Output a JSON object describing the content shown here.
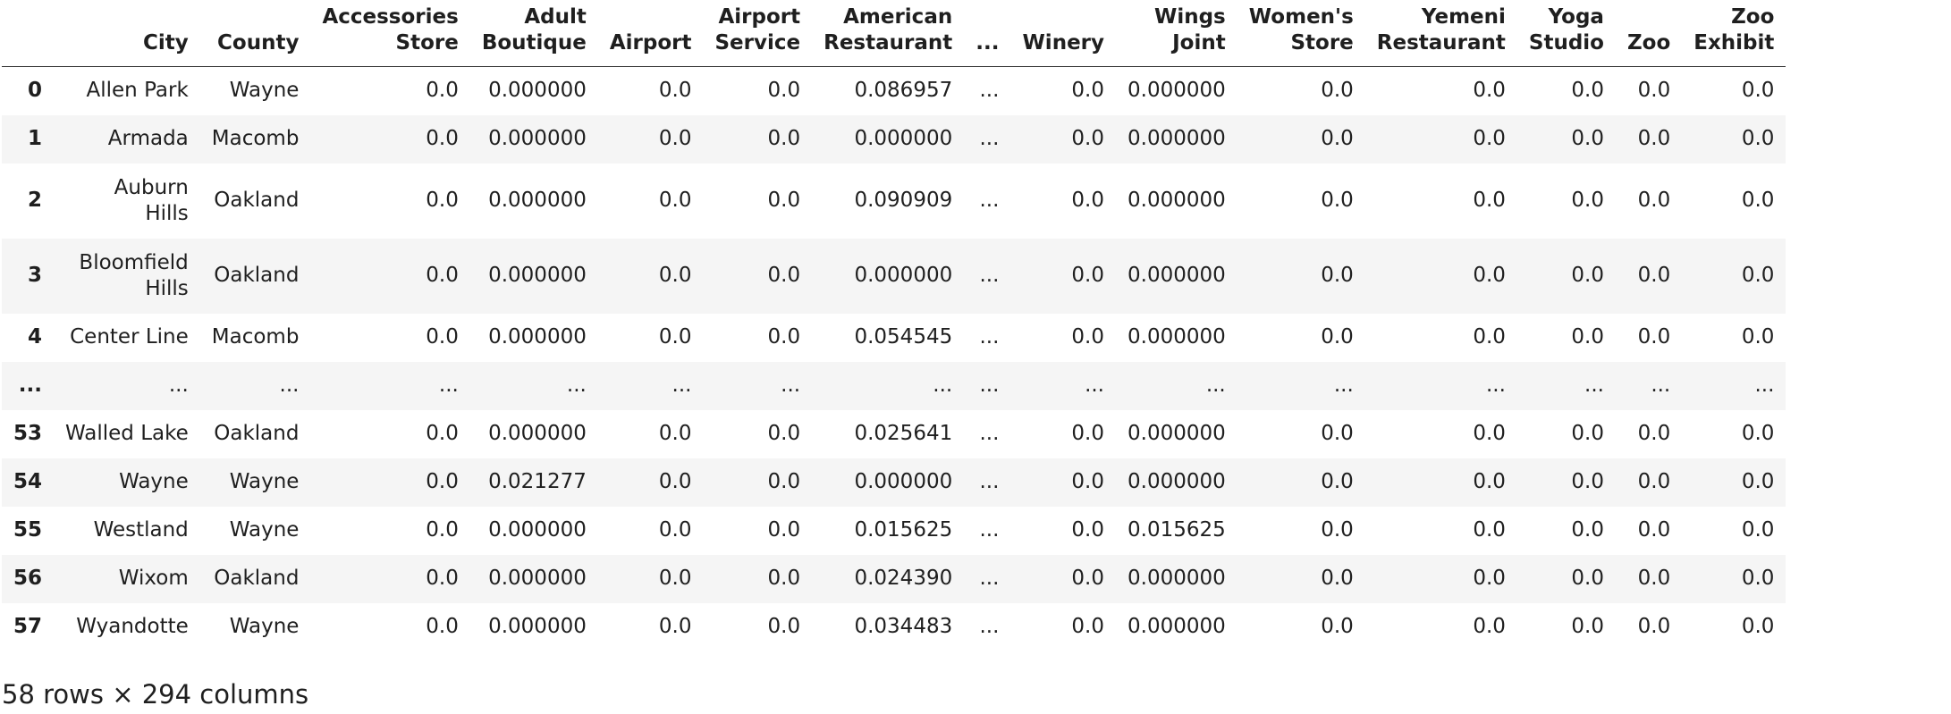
{
  "dataframe": {
    "columns": [
      "",
      "City",
      "County",
      "Accessories Store",
      "Adult Boutique",
      "Airport",
      "Airport Service",
      "American Restaurant",
      "...",
      "Winery",
      "Wings Joint",
      "Women's Store",
      "Yemeni Restaurant",
      "Yoga Studio",
      "Zoo",
      "Zoo Exhibit"
    ],
    "rows": [
      [
        "0",
        "Allen Park",
        "Wayne",
        "0.0",
        "0.000000",
        "0.0",
        "0.0",
        "0.086957",
        "...",
        "0.0",
        "0.000000",
        "0.0",
        "0.0",
        "0.0",
        "0.0",
        "0.0"
      ],
      [
        "1",
        "Armada",
        "Macomb",
        "0.0",
        "0.000000",
        "0.0",
        "0.0",
        "0.000000",
        "...",
        "0.0",
        "0.000000",
        "0.0",
        "0.0",
        "0.0",
        "0.0",
        "0.0"
      ],
      [
        "2",
        "Auburn Hills",
        "Oakland",
        "0.0",
        "0.000000",
        "0.0",
        "0.0",
        "0.090909",
        "...",
        "0.0",
        "0.000000",
        "0.0",
        "0.0",
        "0.0",
        "0.0",
        "0.0"
      ],
      [
        "3",
        "Bloomfield Hills",
        "Oakland",
        "0.0",
        "0.000000",
        "0.0",
        "0.0",
        "0.000000",
        "...",
        "0.0",
        "0.000000",
        "0.0",
        "0.0",
        "0.0",
        "0.0",
        "0.0"
      ],
      [
        "4",
        "Center Line",
        "Macomb",
        "0.0",
        "0.000000",
        "0.0",
        "0.0",
        "0.054545",
        "...",
        "0.0",
        "0.000000",
        "0.0",
        "0.0",
        "0.0",
        "0.0",
        "0.0"
      ],
      [
        "...",
        "...",
        "...",
        "...",
        "...",
        "...",
        "...",
        "...",
        "...",
        "...",
        "...",
        "...",
        "...",
        "...",
        "...",
        "..."
      ],
      [
        "53",
        "Walled Lake",
        "Oakland",
        "0.0",
        "0.000000",
        "0.0",
        "0.0",
        "0.025641",
        "...",
        "0.0",
        "0.000000",
        "0.0",
        "0.0",
        "0.0",
        "0.0",
        "0.0"
      ],
      [
        "54",
        "Wayne",
        "Wayne",
        "0.0",
        "0.021277",
        "0.0",
        "0.0",
        "0.000000",
        "...",
        "0.0",
        "0.000000",
        "0.0",
        "0.0",
        "0.0",
        "0.0",
        "0.0"
      ],
      [
        "55",
        "Westland",
        "Wayne",
        "0.0",
        "0.000000",
        "0.0",
        "0.0",
        "0.015625",
        "...",
        "0.0",
        "0.015625",
        "0.0",
        "0.0",
        "0.0",
        "0.0",
        "0.0"
      ],
      [
        "56",
        "Wixom",
        "Oakland",
        "0.0",
        "0.000000",
        "0.0",
        "0.0",
        "0.024390",
        "...",
        "0.0",
        "0.000000",
        "0.0",
        "0.0",
        "0.0",
        "0.0",
        "0.0"
      ],
      [
        "57",
        "Wyandotte",
        "Wayne",
        "0.0",
        "0.000000",
        "0.0",
        "0.0",
        "0.034483",
        "...",
        "0.0",
        "0.000000",
        "0.0",
        "0.0",
        "0.0",
        "0.0",
        "0.0"
      ]
    ],
    "summary": "58 rows × 294 columns"
  }
}
